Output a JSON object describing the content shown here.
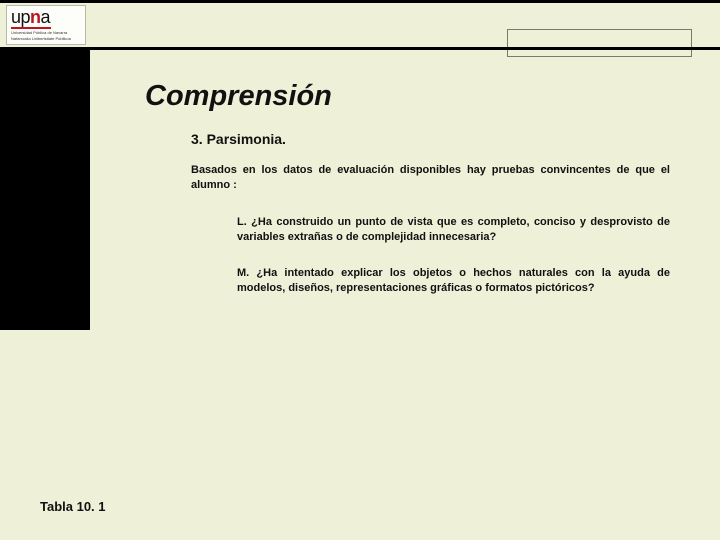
{
  "colors": {
    "background": "#eef0d8",
    "accent_red": "#c1121f",
    "black": "#000000",
    "text": "#111111",
    "box_border": "#7a7a6a"
  },
  "logo": {
    "prefix": "up",
    "accent": "n",
    "suffix": "a",
    "sub1": "Universidad Pública de Navarra",
    "sub2": "Nafarroako Unibertsitate Publikoa"
  },
  "content": {
    "title": "Comprensión",
    "subtitle": "3. Parsimonia.",
    "intro": "Basados en los datos de evaluación disponibles hay pruebas convincentes de que el alumno :",
    "item_l": "L. ¿Ha construido un punto de vista que es completo, conciso y desprovisto de variables extrañas o de complejidad innecesaria?",
    "item_m": "M. ¿Ha intentado explicar los objetos o hechos naturales con la ayuda de modelos, diseños, representaciones gráficas o formatos pictóricos?"
  },
  "footer": {
    "label": "Tabla 10. 1"
  }
}
